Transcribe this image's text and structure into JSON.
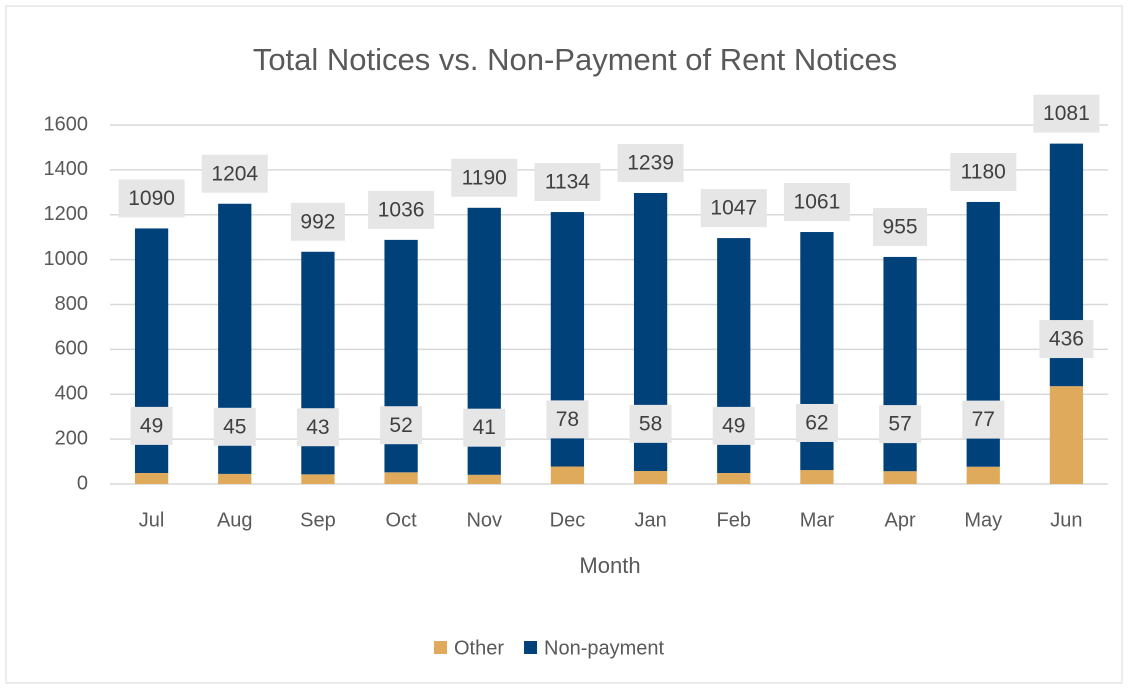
{
  "chart_data": {
    "type": "stacked_bar",
    "title": "Total Notices vs. Non-Payment of Rent Notices",
    "x_label": "Month",
    "categories": [
      "Jul",
      "Aug",
      "Sep",
      "Oct",
      "Nov",
      "Dec",
      "Jan",
      "Feb",
      "Mar",
      "Apr",
      "May",
      "Jun"
    ],
    "series": [
      {
        "name": "Other",
        "color": "#dfaa5c",
        "values": [
          49,
          45,
          43,
          52,
          41,
          78,
          58,
          49,
          62,
          57,
          77,
          436
        ]
      },
      {
        "name": "Non-payment",
        "color": "#00417a",
        "values": [
          1090,
          1204,
          992,
          1036,
          1190,
          1134,
          1239,
          1047,
          1061,
          955,
          1180,
          1081
        ]
      }
    ],
    "ylim": [
      0,
      1600
    ],
    "yticks": [
      0,
      200,
      400,
      600,
      800,
      1000,
      1200,
      1400,
      1600
    ],
    "grid": true,
    "legend": "bottom"
  }
}
